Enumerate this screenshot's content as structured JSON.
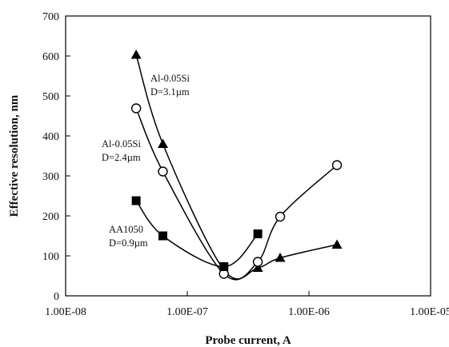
{
  "chart_data": {
    "type": "scatter",
    "title": "",
    "xlabel": "Probe current, A",
    "ylabel": "Effective resolution, nm",
    "x_scale": "log",
    "xlim": [
      1e-08,
      1e-05
    ],
    "ylim": [
      0,
      700
    ],
    "x_ticks": [
      1e-08,
      1e-07,
      1e-06,
      1e-05
    ],
    "x_tick_labels": [
      "1.00E-08",
      "1.00E-07",
      "1.00E-06",
      "1.00E-05"
    ],
    "y_ticks": [
      0,
      100,
      200,
      300,
      400,
      500,
      600,
      700
    ],
    "y_tick_labels": [
      "0",
      "100",
      "200",
      "300",
      "400",
      "500",
      "600",
      "700"
    ],
    "grid": false,
    "series": [
      {
        "marker": "triangle",
        "color": "#000000",
        "points": [
          [
            3.8e-08,
            603
          ],
          [
            6.3e-08,
            380
          ],
          [
            2e-07,
            65
          ],
          [
            3.8e-07,
            70
          ],
          [
            5.8e-07,
            95
          ],
          [
            1.7e-06,
            128
          ]
        ]
      },
      {
        "marker": "open-circle",
        "color": "#000000",
        "points": [
          [
            3.8e-08,
            469
          ],
          [
            6.3e-08,
            311
          ],
          [
            2e-07,
            55
          ],
          [
            3.8e-07,
            85
          ],
          [
            5.8e-07,
            198
          ],
          [
            1.7e-06,
            327
          ]
        ]
      },
      {
        "marker": "square",
        "color": "#000000",
        "points": [
          [
            3.8e-08,
            238
          ],
          [
            6.3e-08,
            150
          ],
          [
            2e-07,
            73
          ],
          [
            3.8e-07,
            155
          ]
        ]
      }
    ],
    "annotations": [
      {
        "lines": [
          "Al-0.05Si",
          "D=3.1µm"
        ],
        "series_index": 0
      },
      {
        "lines": [
          "Al-0.05Si",
          "D=2.4µm"
        ],
        "series_index": 1
      },
      {
        "lines": [
          "AA1050",
          "D=0.9µm"
        ],
        "series_index": 2
      }
    ]
  }
}
